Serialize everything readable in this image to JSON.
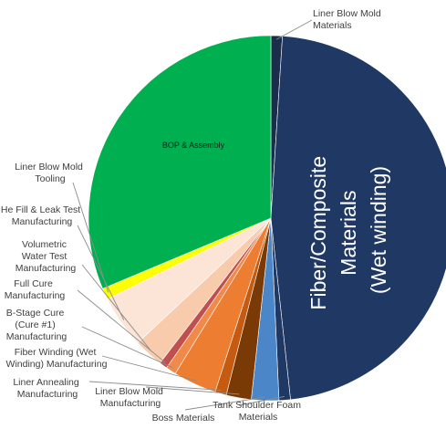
{
  "chart_data": {
    "type": "pie",
    "title": "",
    "slices": [
      {
        "label": "Liner Blow Mold Materials",
        "value": 1.0,
        "color": "#1a2d4a"
      },
      {
        "label": "Fiber/Composite Materials (Wet winding)",
        "value": 46.8,
        "color": "#1f3864"
      },
      {
        "label": "Tank Shoulder Foam Materials",
        "value": 1.0,
        "color": "#203864"
      },
      {
        "label": "Boss Materials",
        "value": 2.4,
        "color": "#4a86c8"
      },
      {
        "label": "Liner Blow Mold Manufacturing",
        "value": 2.2,
        "color": "#7a3a06"
      },
      {
        "label": "Liner Annealing Manufacturing",
        "value": 1.0,
        "color": "#c55a11"
      },
      {
        "label": "Fiber Winding (Wet Winding) Manufacturing",
        "value": 3.8,
        "color": "#ed7d31"
      },
      {
        "label": "B-Stage Cure (Cure #1) Manufacturing",
        "value": 0.9,
        "color": "#f08a4b"
      },
      {
        "label": "Full Cure Manufacturing",
        "value": 0.7,
        "color": "#c0504d"
      },
      {
        "label": "Volumetric Water Test Manufacturing",
        "value": 2.6,
        "color": "#f8cbad"
      },
      {
        "label": "He Fill & Leak Test Manufacturing",
        "value": 4.6,
        "color": "#fce4d6"
      },
      {
        "label": "Liner Blow Mold Tooling",
        "value": 1.0,
        "color": "#ffff00"
      },
      {
        "label": "BOP & Assembly",
        "value": 31.0,
        "color": "#00b050"
      }
    ],
    "labels": {
      "liner_blow_mold_materials": [
        "Liner Blow Mold",
        "Materials"
      ],
      "fiber_composite": [
        "Fiber/Composite",
        "Materials",
        "(Wet winding)"
      ],
      "tank_shoulder_foam": [
        "Tank Shoulder Foam",
        "Materials"
      ],
      "boss_materials": [
        "Boss Materials"
      ],
      "liner_blow_mold_manufacturing": [
        "Liner Blow Mold",
        "Manufacturing"
      ],
      "liner_annealing": [
        "Liner Annealing",
        "Manufacturing"
      ],
      "fiber_winding": [
        "Fiber Winding (Wet",
        "Winding) Manufacturing"
      ],
      "b_stage_cure": [
        "B-Stage Cure",
        "(Cure #1)",
        "Manufacturing"
      ],
      "full_cure": [
        "Full Cure",
        "Manufacturing"
      ],
      "volumetric_water": [
        "Volumetric",
        "Water Test",
        "Manufacturing"
      ],
      "he_fill": [
        "He Fill & Leak Test",
        "Manufacturing"
      ],
      "liner_blow_mold_tooling": [
        "Liner Blow Mold",
        "Tooling"
      ],
      "bop_assembly": [
        "BOP & Assembly"
      ]
    }
  }
}
